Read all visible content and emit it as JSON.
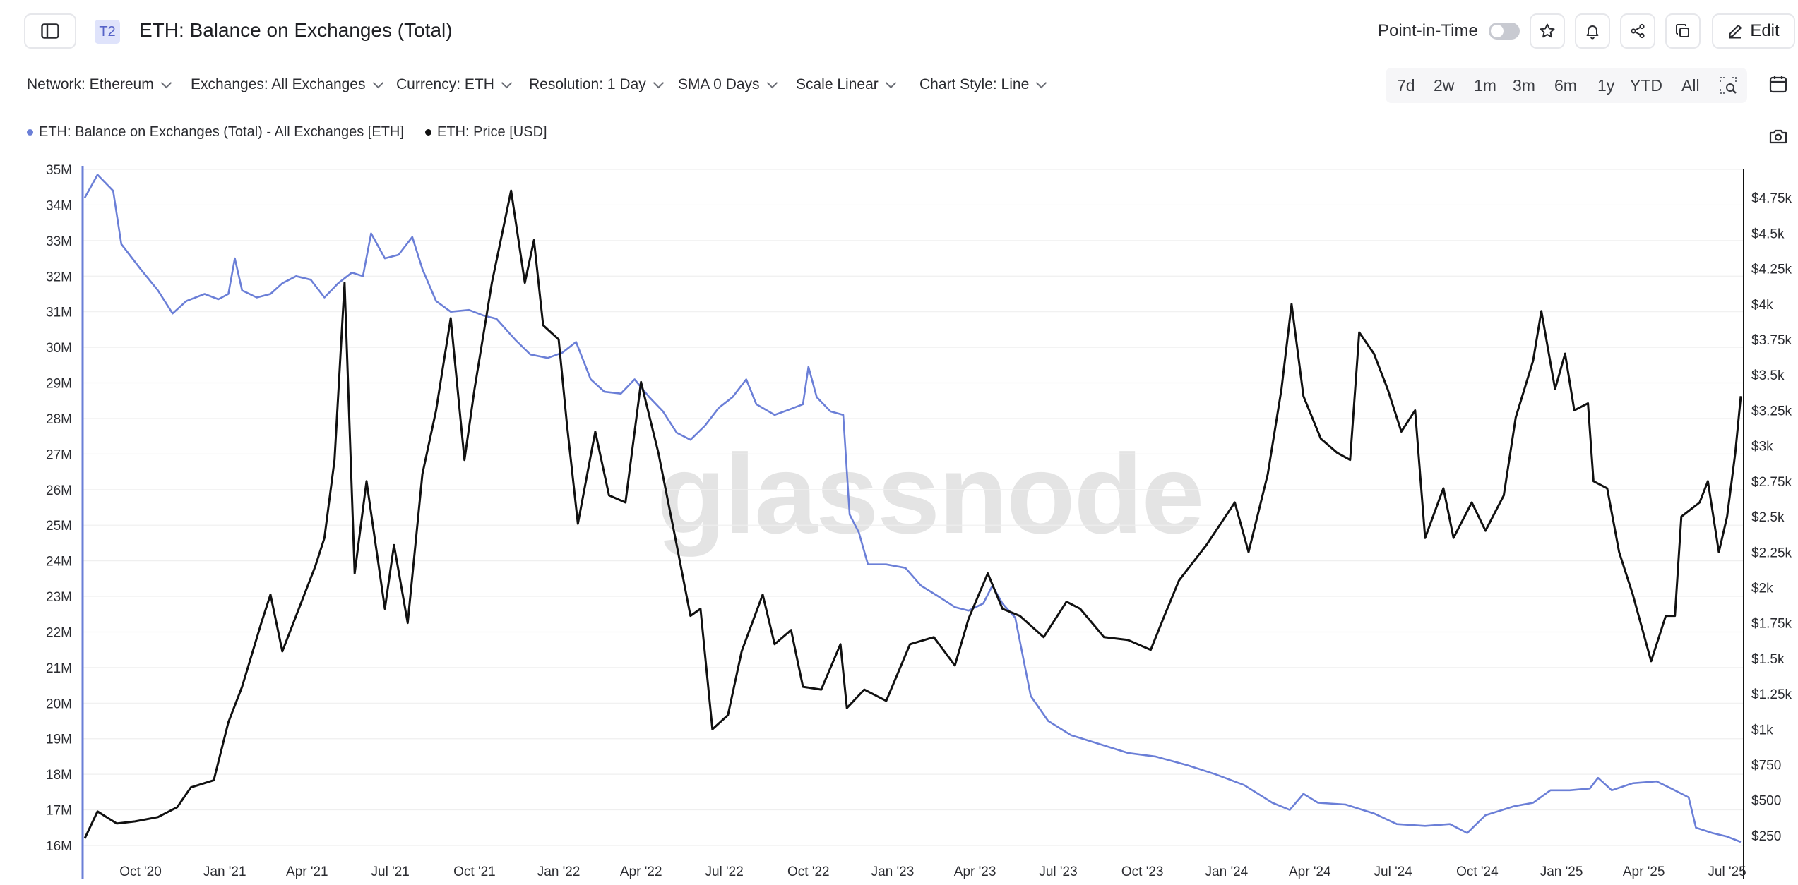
{
  "header": {
    "tag": "T2",
    "title": "ETH: Balance on Exchanges (Total)",
    "point_in_time_label": "Point-in-Time",
    "edit_label": "Edit"
  },
  "filters": [
    {
      "label": "Network: Ethereum"
    },
    {
      "label": "Exchanges: All Exchanges"
    },
    {
      "label": "Currency: ETH"
    },
    {
      "label": "Resolution: 1 Day"
    },
    {
      "label": "SMA 0 Days"
    },
    {
      "label": "Scale Linear"
    },
    {
      "label": "Chart Style: Line"
    }
  ],
  "ranges": [
    "7d",
    "2w",
    "1m",
    "3m",
    "6m",
    "1y",
    "YTD",
    "All"
  ],
  "icons": {
    "sidebar": "sidebar-toggle-icon",
    "star": "star-icon",
    "bell": "bell-icon",
    "share": "share-icon",
    "copy": "copy-icon",
    "edit": "pencil-icon",
    "calendar": "calendar-icon",
    "camera": "camera-icon",
    "zoom": "zoom-select-icon"
  },
  "watermark": "glassnode",
  "colors": {
    "balance": "#6b7fd7",
    "price": "#111111",
    "accent": "#5663c8"
  },
  "chart_data": {
    "type": "line",
    "title": "ETH: Balance on Exchanges (Total)",
    "legend": [
      "ETH: Balance on Exchanges (Total) - All Exchanges [ETH]",
      "ETH: Price [USD]"
    ],
    "legend_position": "top-left",
    "grid": "horizontal",
    "x_tick_labels": [
      "Oct '20",
      "Jan '21",
      "Apr '21",
      "Jul '21",
      "Oct '21",
      "Jan '22",
      "Apr '22",
      "Jul '22",
      "Oct '22",
      "Jan '23",
      "Apr '23",
      "Jul '23",
      "Oct '23",
      "Jan '24",
      "Apr '24",
      "Jul '24",
      "Oct '24",
      "Jan '25",
      "Apr '25",
      "Jul '25"
    ],
    "x_range": [
      "2020-08-01",
      "2025-07-16"
    ],
    "y_left": {
      "ticks": [
        16,
        17,
        18,
        19,
        20,
        21,
        22,
        23,
        24,
        25,
        26,
        27,
        28,
        29,
        30,
        31,
        32,
        33,
        34,
        35
      ],
      "tick_labels": [
        "16M",
        "17M",
        "18M",
        "19M",
        "20M",
        "21M",
        "22M",
        "23M",
        "24M",
        "25M",
        "26M",
        "27M",
        "28M",
        "29M",
        "30M",
        "31M",
        "32M",
        "33M",
        "34M",
        "35M"
      ],
      "unit": "ETH",
      "range": [
        16,
        35
      ]
    },
    "y_right": {
      "ticks": [
        250,
        500,
        750,
        1000,
        1250,
        1500,
        1750,
        2000,
        2250,
        2500,
        2750,
        3000,
        3250,
        3500,
        3750,
        4000,
        4250,
        4500,
        4750
      ],
      "tick_labels": [
        "$250",
        "$500",
        "$750",
        "$1k",
        "$1.25k",
        "$1.5k",
        "$1.75k",
        "$2k",
        "$2.25k",
        "$2.5k",
        "$2.75k",
        "$3k",
        "$3.25k",
        "$3.5k",
        "$3.75k",
        "$4k",
        "$4.25k",
        "$4.5k",
        "$4.75k"
      ],
      "unit": "USD",
      "range": [
        180,
        4950
      ]
    },
    "series": [
      {
        "name": "ETH: Balance on Exchanges (Total) - All Exchanges [ETH]",
        "axis": "left",
        "unit": "millions ETH",
        "points": [
          [
            "2020-08-01",
            34.2
          ],
          [
            "2020-08-15",
            34.85
          ],
          [
            "2020-09-01",
            34.4
          ],
          [
            "2020-09-10",
            32.9
          ],
          [
            "2020-10-01",
            32.2
          ],
          [
            "2020-10-20",
            31.6
          ],
          [
            "2020-11-05",
            30.95
          ],
          [
            "2020-11-20",
            31.3
          ],
          [
            "2020-12-10",
            31.5
          ],
          [
            "2020-12-25",
            31.35
          ],
          [
            "2021-01-05",
            31.5
          ],
          [
            "2021-01-12",
            32.5
          ],
          [
            "2021-01-20",
            31.6
          ],
          [
            "2021-02-05",
            31.4
          ],
          [
            "2021-02-20",
            31.5
          ],
          [
            "2021-03-05",
            31.8
          ],
          [
            "2021-03-20",
            32.0
          ],
          [
            "2021-04-05",
            31.9
          ],
          [
            "2021-04-20",
            31.4
          ],
          [
            "2021-05-05",
            31.8
          ],
          [
            "2021-05-20",
            32.1
          ],
          [
            "2021-06-01",
            32.0
          ],
          [
            "2021-06-10",
            33.2
          ],
          [
            "2021-06-25",
            32.5
          ],
          [
            "2021-07-10",
            32.6
          ],
          [
            "2021-07-25",
            33.1
          ],
          [
            "2021-08-05",
            32.2
          ],
          [
            "2021-08-20",
            31.3
          ],
          [
            "2021-09-05",
            31.0
          ],
          [
            "2021-09-25",
            31.05
          ],
          [
            "2021-10-10",
            30.9
          ],
          [
            "2021-10-25",
            30.8
          ],
          [
            "2021-11-15",
            30.2
          ],
          [
            "2021-12-01",
            29.8
          ],
          [
            "2021-12-20",
            29.7
          ],
          [
            "2022-01-05",
            29.85
          ],
          [
            "2022-01-20",
            30.15
          ],
          [
            "2022-02-05",
            29.1
          ],
          [
            "2022-02-20",
            28.75
          ],
          [
            "2022-03-10",
            28.7
          ],
          [
            "2022-03-25",
            29.1
          ],
          [
            "2022-04-10",
            28.6
          ],
          [
            "2022-04-25",
            28.2
          ],
          [
            "2022-05-10",
            27.6
          ],
          [
            "2022-05-25",
            27.4
          ],
          [
            "2022-06-10",
            27.8
          ],
          [
            "2022-06-25",
            28.3
          ],
          [
            "2022-07-10",
            28.6
          ],
          [
            "2022-07-25",
            29.1
          ],
          [
            "2022-08-05",
            28.4
          ],
          [
            "2022-08-25",
            28.1
          ],
          [
            "2022-09-10",
            28.25
          ],
          [
            "2022-09-25",
            28.4
          ],
          [
            "2022-10-01",
            29.45
          ],
          [
            "2022-10-10",
            28.6
          ],
          [
            "2022-10-25",
            28.2
          ],
          [
            "2022-11-08",
            28.1
          ],
          [
            "2022-11-15",
            25.3
          ],
          [
            "2022-11-25",
            24.8
          ],
          [
            "2022-12-05",
            23.9
          ],
          [
            "2022-12-25",
            23.9
          ],
          [
            "2023-01-15",
            23.8
          ],
          [
            "2023-02-01",
            23.3
          ],
          [
            "2023-02-20",
            23.0
          ],
          [
            "2023-03-10",
            22.7
          ],
          [
            "2023-03-25",
            22.6
          ],
          [
            "2023-04-10",
            22.8
          ],
          [
            "2023-04-20",
            23.3
          ],
          [
            "2023-05-01",
            22.8
          ],
          [
            "2023-05-15",
            22.4
          ],
          [
            "2023-06-01",
            20.2
          ],
          [
            "2023-06-20",
            19.5
          ],
          [
            "2023-07-15",
            19.1
          ],
          [
            "2023-08-15",
            18.85
          ],
          [
            "2023-09-15",
            18.6
          ],
          [
            "2023-10-15",
            18.5
          ],
          [
            "2023-11-20",
            18.25
          ],
          [
            "2023-12-20",
            18.0
          ],
          [
            "2024-01-20",
            17.7
          ],
          [
            "2024-02-20",
            17.2
          ],
          [
            "2024-03-10",
            17.0
          ],
          [
            "2024-03-25",
            17.45
          ],
          [
            "2024-04-10",
            17.2
          ],
          [
            "2024-05-10",
            17.15
          ],
          [
            "2024-06-10",
            16.9
          ],
          [
            "2024-07-05",
            16.6
          ],
          [
            "2024-08-05",
            16.55
          ],
          [
            "2024-09-01",
            16.6
          ],
          [
            "2024-09-20",
            16.35
          ],
          [
            "2024-10-10",
            16.85
          ],
          [
            "2024-11-10",
            17.1
          ],
          [
            "2024-12-01",
            17.2
          ],
          [
            "2024-12-20",
            17.55
          ],
          [
            "2025-01-10",
            17.55
          ],
          [
            "2025-02-01",
            17.6
          ],
          [
            "2025-02-10",
            17.9
          ],
          [
            "2025-02-25",
            17.55
          ],
          [
            "2025-03-20",
            17.75
          ],
          [
            "2025-04-15",
            17.8
          ],
          [
            "2025-05-01",
            17.6
          ],
          [
            "2025-05-20",
            17.35
          ],
          [
            "2025-05-28",
            16.5
          ],
          [
            "2025-06-15",
            16.35
          ],
          [
            "2025-07-01",
            16.25
          ],
          [
            "2025-07-16",
            16.1
          ]
        ]
      },
      {
        "name": "ETH: Price [USD]",
        "axis": "right",
        "unit": "USD",
        "points": [
          [
            "2020-08-01",
            230
          ],
          [
            "2020-08-15",
            420
          ],
          [
            "2020-09-05",
            335
          ],
          [
            "2020-09-25",
            350
          ],
          [
            "2020-10-20",
            380
          ],
          [
            "2020-11-10",
            450
          ],
          [
            "2020-11-25",
            590
          ],
          [
            "2020-12-20",
            640
          ],
          [
            "2021-01-05",
            1050
          ],
          [
            "2021-01-20",
            1300
          ],
          [
            "2021-02-10",
            1750
          ],
          [
            "2021-02-20",
            1950
          ],
          [
            "2021-03-05",
            1550
          ],
          [
            "2021-03-20",
            1800
          ],
          [
            "2021-04-10",
            2150
          ],
          [
            "2021-04-20",
            2350
          ],
          [
            "2021-05-01",
            2900
          ],
          [
            "2021-05-12",
            4150
          ],
          [
            "2021-05-23",
            2100
          ],
          [
            "2021-06-05",
            2750
          ],
          [
            "2021-06-25",
            1850
          ],
          [
            "2021-07-05",
            2300
          ],
          [
            "2021-07-20",
            1750
          ],
          [
            "2021-08-05",
            2800
          ],
          [
            "2021-08-20",
            3250
          ],
          [
            "2021-09-05",
            3900
          ],
          [
            "2021-09-20",
            2900
          ],
          [
            "2021-10-01",
            3400
          ],
          [
            "2021-10-20",
            4150
          ],
          [
            "2021-11-10",
            4800
          ],
          [
            "2021-11-25",
            4150
          ],
          [
            "2021-12-05",
            4450
          ],
          [
            "2021-12-15",
            3850
          ],
          [
            "2022-01-01",
            3750
          ],
          [
            "2022-01-10",
            3150
          ],
          [
            "2022-01-22",
            2450
          ],
          [
            "2022-02-10",
            3100
          ],
          [
            "2022-02-25",
            2650
          ],
          [
            "2022-03-15",
            2600
          ],
          [
            "2022-04-01",
            3450
          ],
          [
            "2022-04-20",
            2950
          ],
          [
            "2022-05-10",
            2300
          ],
          [
            "2022-05-25",
            1800
          ],
          [
            "2022-06-05",
            1850
          ],
          [
            "2022-06-18",
            1000
          ],
          [
            "2022-07-05",
            1100
          ],
          [
            "2022-07-20",
            1550
          ],
          [
            "2022-08-12",
            1950
          ],
          [
            "2022-08-25",
            1600
          ],
          [
            "2022-09-12",
            1700
          ],
          [
            "2022-09-25",
            1300
          ],
          [
            "2022-10-15",
            1280
          ],
          [
            "2022-11-05",
            1600
          ],
          [
            "2022-11-12",
            1150
          ],
          [
            "2022-12-01",
            1280
          ],
          [
            "2022-12-25",
            1200
          ],
          [
            "2023-01-20",
            1600
          ],
          [
            "2023-02-15",
            1650
          ],
          [
            "2023-03-10",
            1450
          ],
          [
            "2023-03-25",
            1780
          ],
          [
            "2023-04-15",
            2100
          ],
          [
            "2023-05-01",
            1850
          ],
          [
            "2023-05-20",
            1800
          ],
          [
            "2023-06-15",
            1650
          ],
          [
            "2023-07-10",
            1900
          ],
          [
            "2023-07-25",
            1850
          ],
          [
            "2023-08-20",
            1650
          ],
          [
            "2023-09-15",
            1630
          ],
          [
            "2023-10-10",
            1560
          ],
          [
            "2023-10-25",
            1800
          ],
          [
            "2023-11-10",
            2050
          ],
          [
            "2023-12-10",
            2300
          ],
          [
            "2024-01-10",
            2600
          ],
          [
            "2024-01-25",
            2250
          ],
          [
            "2024-02-15",
            2800
          ],
          [
            "2024-03-01",
            3400
          ],
          [
            "2024-03-12",
            4000
          ],
          [
            "2024-03-25",
            3350
          ],
          [
            "2024-04-13",
            3050
          ],
          [
            "2024-05-01",
            2950
          ],
          [
            "2024-05-15",
            2900
          ],
          [
            "2024-05-25",
            3800
          ],
          [
            "2024-06-10",
            3650
          ],
          [
            "2024-06-25",
            3400
          ],
          [
            "2024-07-10",
            3100
          ],
          [
            "2024-07-25",
            3250
          ],
          [
            "2024-08-05",
            2350
          ],
          [
            "2024-08-25",
            2700
          ],
          [
            "2024-09-05",
            2350
          ],
          [
            "2024-09-25",
            2600
          ],
          [
            "2024-10-10",
            2400
          ],
          [
            "2024-10-30",
            2650
          ],
          [
            "2024-11-12",
            3200
          ],
          [
            "2024-12-01",
            3600
          ],
          [
            "2024-12-10",
            3950
          ],
          [
            "2024-12-25",
            3400
          ],
          [
            "2025-01-05",
            3650
          ],
          [
            "2025-01-15",
            3250
          ],
          [
            "2025-01-30",
            3300
          ],
          [
            "2025-02-05",
            2750
          ],
          [
            "2025-02-20",
            2700
          ],
          [
            "2025-03-05",
            2250
          ],
          [
            "2025-03-20",
            1950
          ],
          [
            "2025-04-09",
            1480
          ],
          [
            "2025-04-25",
            1800
          ],
          [
            "2025-05-05",
            1800
          ],
          [
            "2025-05-12",
            2500
          ],
          [
            "2025-06-01",
            2600
          ],
          [
            "2025-06-10",
            2750
          ],
          [
            "2025-06-22",
            2250
          ],
          [
            "2025-07-01",
            2500
          ],
          [
            "2025-07-10",
            2950
          ],
          [
            "2025-07-16",
            3350
          ]
        ]
      }
    ]
  }
}
